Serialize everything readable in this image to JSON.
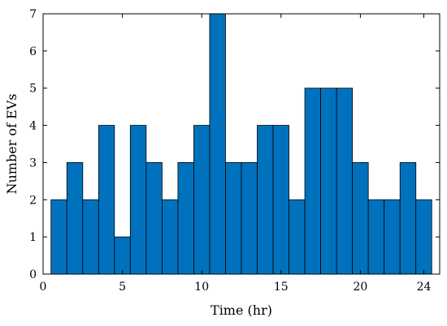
{
  "chart_data": {
    "type": "bar",
    "xlabel": "Time (hr)",
    "ylabel": "Number of EVs",
    "xlim": [
      0,
      25
    ],
    "ylim": [
      0,
      7
    ],
    "xticks": [
      0,
      5,
      10,
      15,
      20,
      24
    ],
    "yticks": [
      0,
      1,
      2,
      3,
      4,
      5,
      6,
      7
    ],
    "grid": false,
    "bar_color": "#0072BD",
    "bar_edge_color": "#000000",
    "bins": [
      {
        "x0": 0.5,
        "x1": 1.5,
        "value": 2
      },
      {
        "x0": 1.5,
        "x1": 2.5,
        "value": 3
      },
      {
        "x0": 2.5,
        "x1": 3.5,
        "value": 2
      },
      {
        "x0": 3.5,
        "x1": 4.5,
        "value": 4
      },
      {
        "x0": 4.5,
        "x1": 5.5,
        "value": 1
      },
      {
        "x0": 5.5,
        "x1": 6.5,
        "value": 4
      },
      {
        "x0": 6.5,
        "x1": 7.5,
        "value": 3
      },
      {
        "x0": 7.5,
        "x1": 8.5,
        "value": 2
      },
      {
        "x0": 8.5,
        "x1": 9.5,
        "value": 3
      },
      {
        "x0": 9.5,
        "x1": 10.5,
        "value": 4
      },
      {
        "x0": 10.5,
        "x1": 11.5,
        "value": 7
      },
      {
        "x0": 11.5,
        "x1": 12.5,
        "value": 3
      },
      {
        "x0": 12.5,
        "x1": 13.5,
        "value": 3
      },
      {
        "x0": 13.5,
        "x1": 14.5,
        "value": 4
      },
      {
        "x0": 14.5,
        "x1": 15.5,
        "value": 4
      },
      {
        "x0": 15.5,
        "x1": 16.5,
        "value": 2
      },
      {
        "x0": 16.5,
        "x1": 17.5,
        "value": 5
      },
      {
        "x0": 17.5,
        "x1": 18.5,
        "value": 5
      },
      {
        "x0": 18.5,
        "x1": 19.5,
        "value": 5
      },
      {
        "x0": 19.5,
        "x1": 20.5,
        "value": 3
      },
      {
        "x0": 20.5,
        "x1": 21.5,
        "value": 2
      },
      {
        "x0": 21.5,
        "x1": 22.5,
        "value": 2
      },
      {
        "x0": 22.5,
        "x1": 23.5,
        "value": 3
      },
      {
        "x0": 23.5,
        "x1": 24.5,
        "value": 2
      }
    ]
  }
}
